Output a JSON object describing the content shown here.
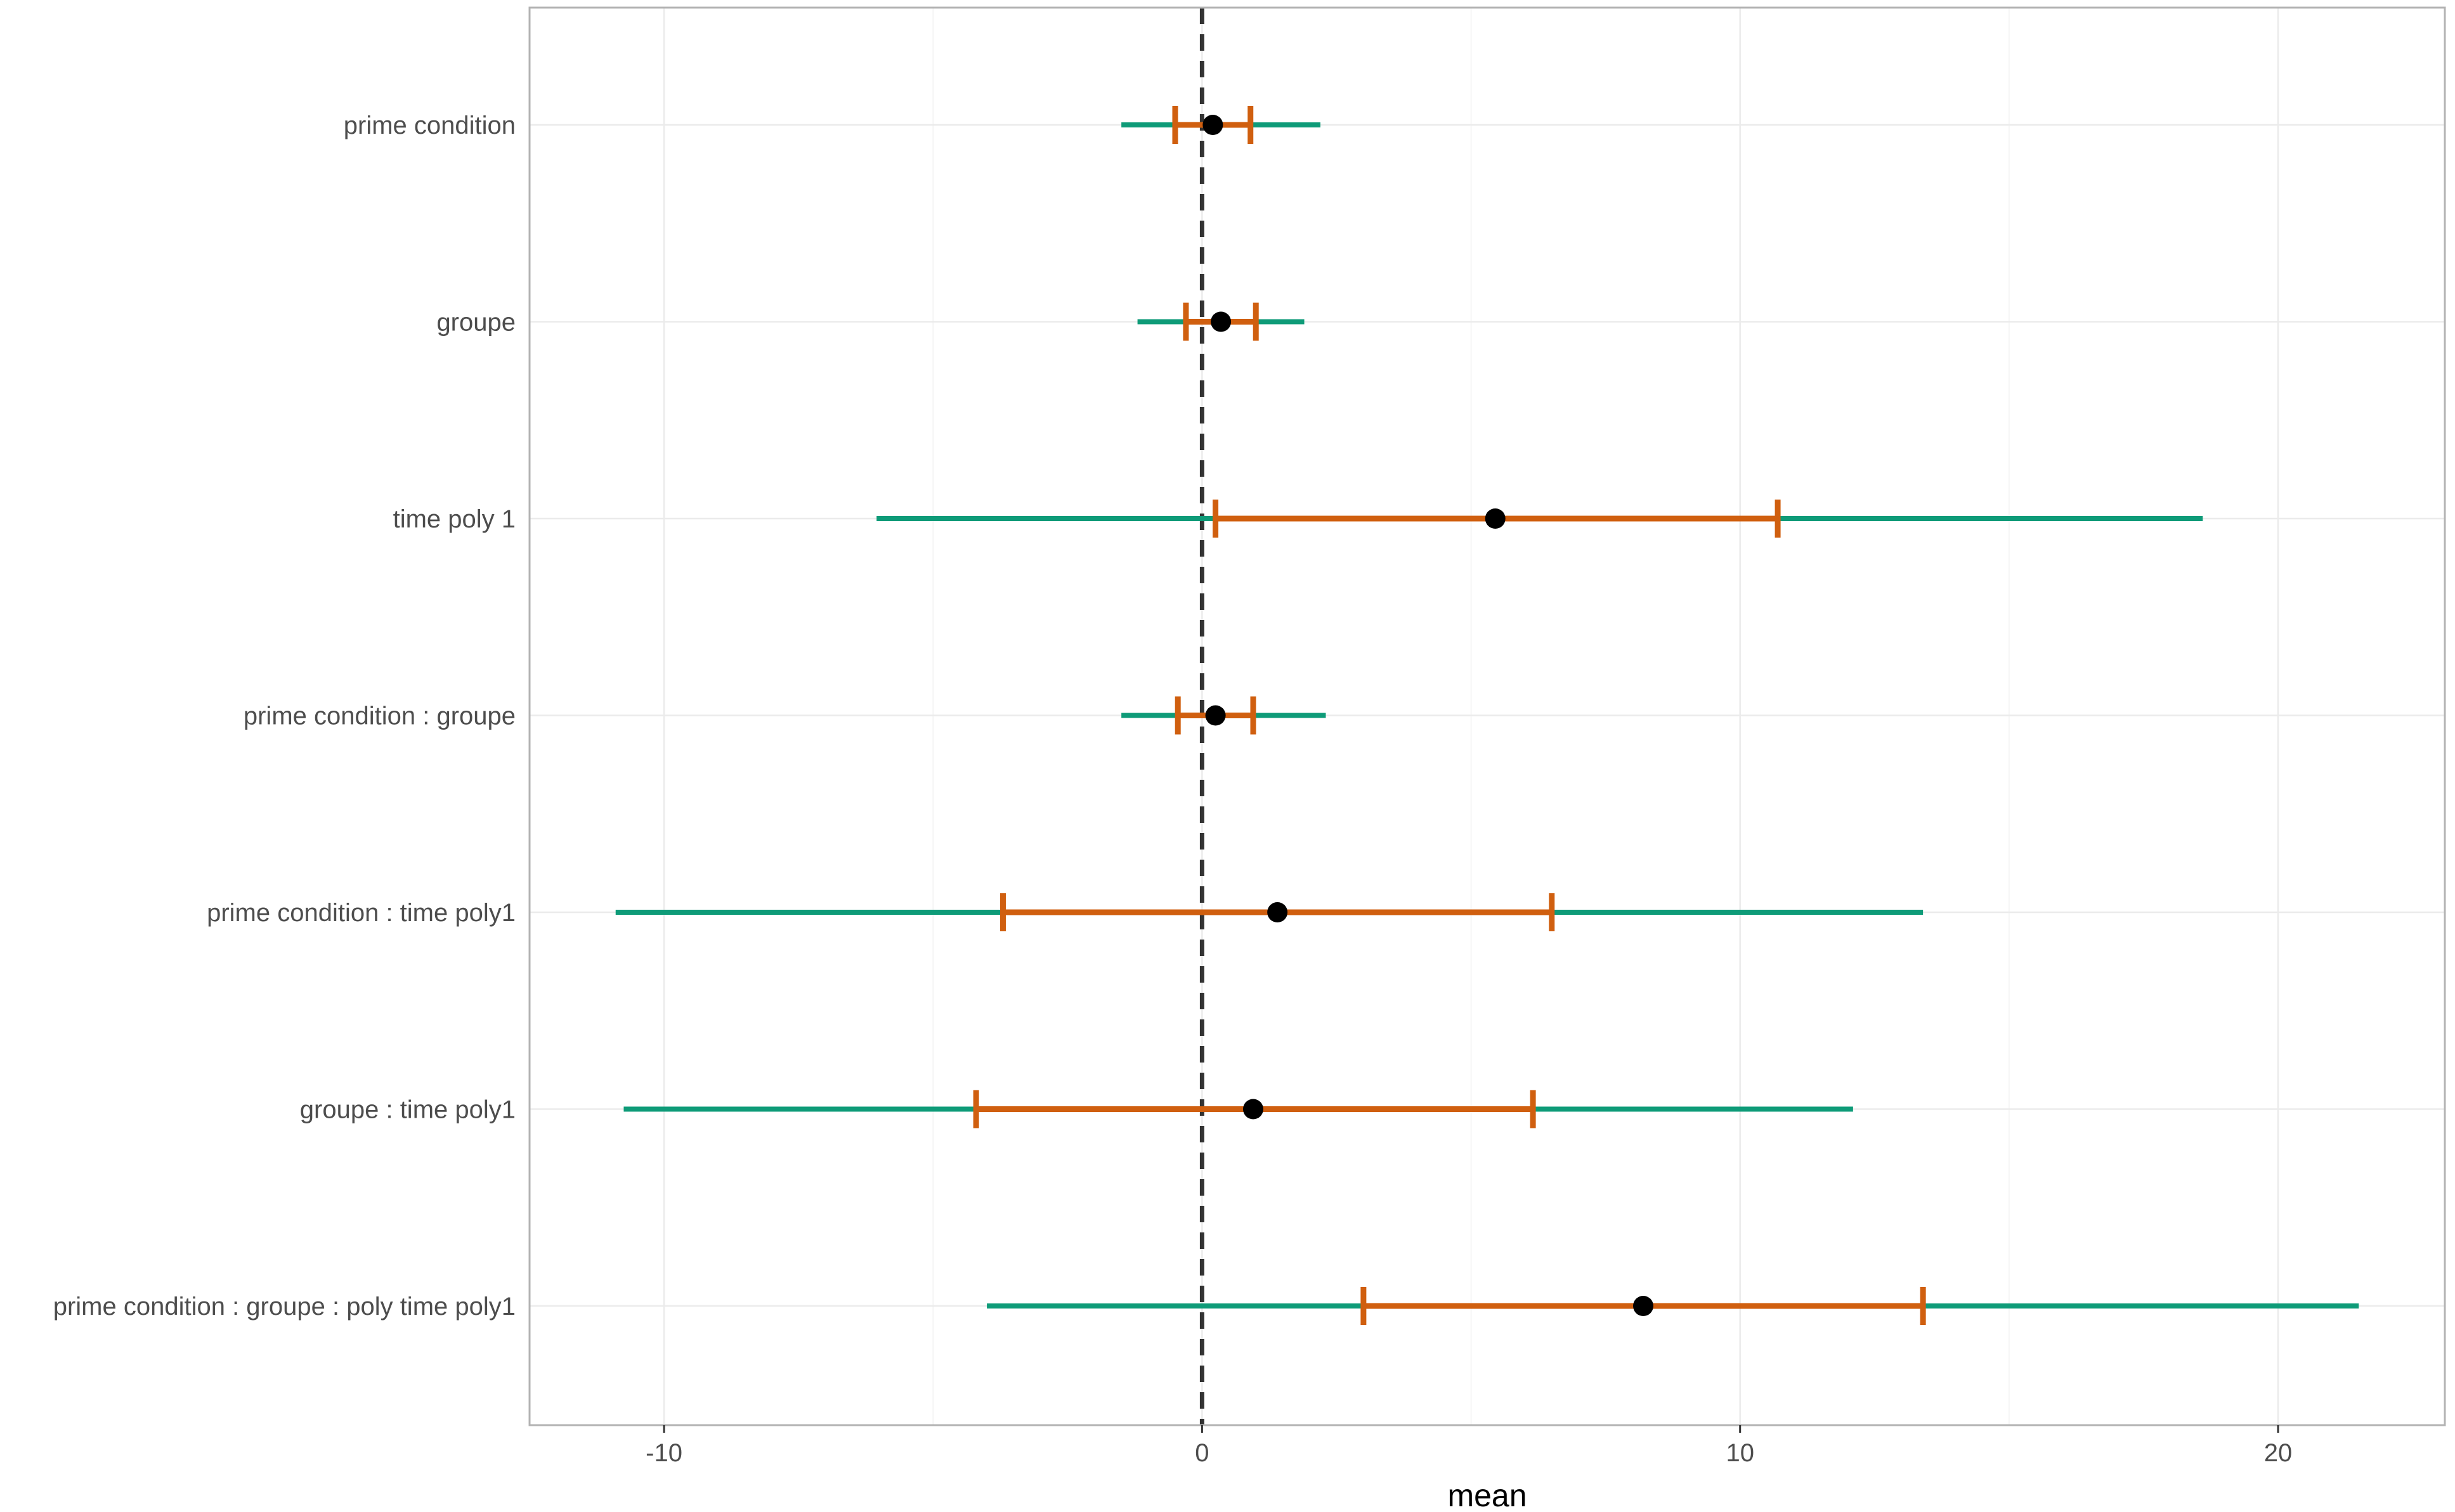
{
  "chart_data": {
    "type": "interval",
    "xlabel": "mean",
    "ylabel": "",
    "xlim": [
      -12.5,
      23.1
    ],
    "xticks": [
      -10,
      0,
      10,
      20
    ],
    "xtick_labels": [
      "-10",
      "0",
      "10",
      "20"
    ],
    "reference_line": {
      "x": 0,
      "style": "dashed"
    },
    "grid": true,
    "legend": "none",
    "colors": {
      "outer_interval": "#0E9B78",
      "inner_interval": "#D05F0F",
      "point": "#000000",
      "reference_line": "#333333",
      "grid": "#ebebeb",
      "panel_border": "#b3b3b3"
    },
    "categories": [
      "prime condition",
      "groupe",
      "time poly 1",
      "prime condition : groupe",
      "prime condition : time poly1",
      "groupe : time poly1",
      "prime condition : groupe : poly time poly1"
    ],
    "estimates": [
      {
        "mean": 0.2,
        "inner": [
          -0.5,
          0.9
        ],
        "outer": [
          -1.5,
          2.2
        ]
      },
      {
        "mean": 0.35,
        "inner": [
          -0.3,
          1.0
        ],
        "outer": [
          -1.2,
          1.9
        ]
      },
      {
        "mean": 5.45,
        "inner": [
          0.25,
          10.7
        ],
        "outer": [
          -6.05,
          18.6
        ]
      },
      {
        "mean": 0.25,
        "inner": [
          -0.45,
          0.95
        ],
        "outer": [
          -1.5,
          2.3
        ]
      },
      {
        "mean": 1.4,
        "inner": [
          -3.7,
          6.5
        ],
        "outer": [
          -10.9,
          13.4
        ]
      },
      {
        "mean": 0.95,
        "inner": [
          -4.2,
          6.15
        ],
        "outer": [
          -10.75,
          12.1
        ]
      },
      {
        "mean": 8.2,
        "inner": [
          3.0,
          13.4
        ],
        "outer": [
          -4.0,
          21.5
        ]
      }
    ]
  }
}
